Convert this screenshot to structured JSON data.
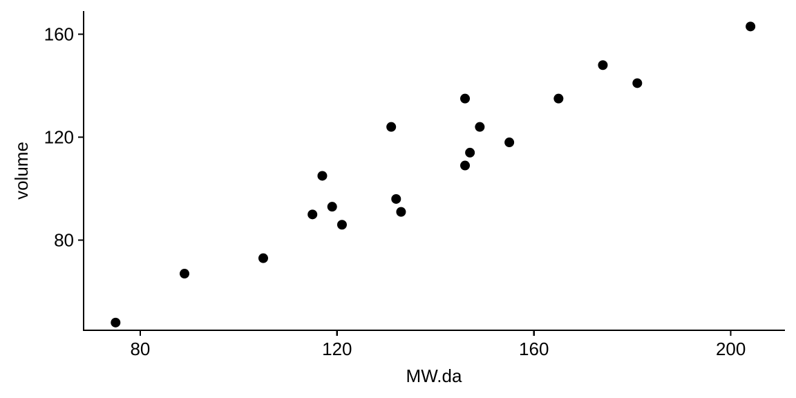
{
  "chart_data": {
    "type": "scatter",
    "title": "",
    "xlabel": "MW.da",
    "ylabel": "volume",
    "xlim": [
      68.5,
      211
    ],
    "ylim": [
      45,
      169
    ],
    "x_ticks": [
      80,
      120,
      160,
      200
    ],
    "y_ticks": [
      80,
      120,
      160
    ],
    "grid": false,
    "legend": "none",
    "point_color": "#000000",
    "points": [
      {
        "x": 75,
        "y": 48
      },
      {
        "x": 89,
        "y": 67
      },
      {
        "x": 105,
        "y": 73
      },
      {
        "x": 115,
        "y": 90
      },
      {
        "x": 117,
        "y": 105
      },
      {
        "x": 119,
        "y": 93
      },
      {
        "x": 121,
        "y": 86
      },
      {
        "x": 131,
        "y": 124
      },
      {
        "x": 132,
        "y": 96
      },
      {
        "x": 133,
        "y": 91
      },
      {
        "x": 146,
        "y": 135
      },
      {
        "x": 146,
        "y": 109
      },
      {
        "x": 147,
        "y": 114
      },
      {
        "x": 149,
        "y": 124
      },
      {
        "x": 155,
        "y": 118
      },
      {
        "x": 165,
        "y": 135
      },
      {
        "x": 174,
        "y": 148
      },
      {
        "x": 181,
        "y": 141
      },
      {
        "x": 204,
        "y": 163
      }
    ]
  }
}
